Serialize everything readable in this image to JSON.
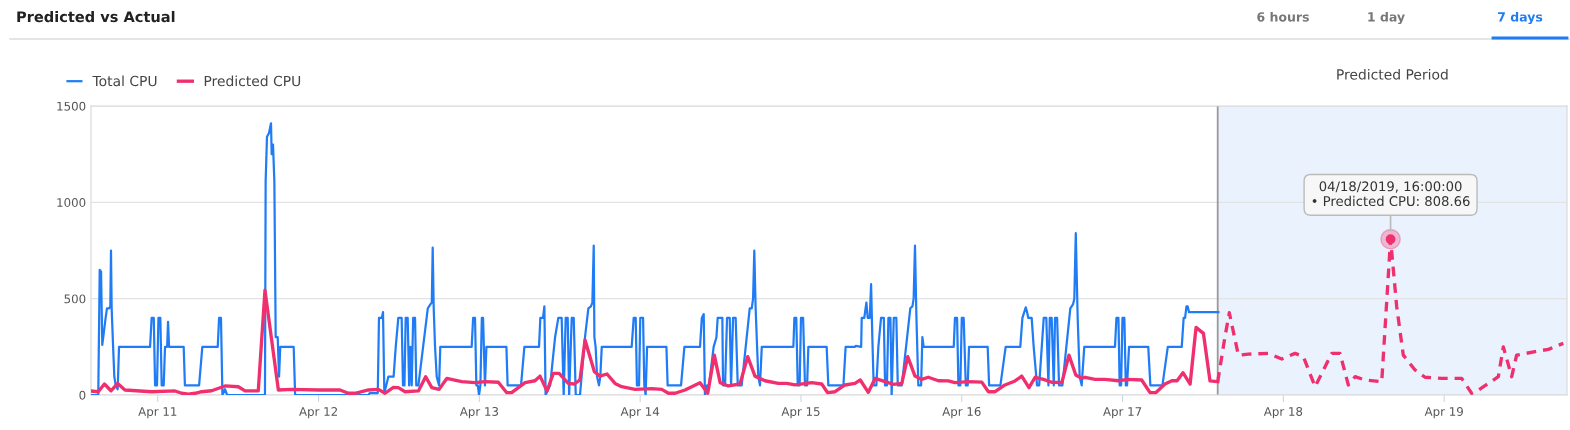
{
  "chart_data": {
    "type": "line",
    "title": "Predicted vs Actual",
    "xlim": [
      "2019-04-10T14:02",
      "2019-04-19T18:20"
    ],
    "xticks": [
      {
        "value": "2019-04-11",
        "label": "Apr 11"
      },
      {
        "value": "2019-04-12",
        "label": "Apr 12"
      },
      {
        "value": "2019-04-13",
        "label": "Apr 13"
      },
      {
        "value": "2019-04-14",
        "label": "Apr 14"
      },
      {
        "value": "2019-04-15",
        "label": "Apr 15"
      },
      {
        "value": "2019-04-16",
        "label": "Apr 16"
      },
      {
        "value": "2019-04-17",
        "label": "Apr 17"
      },
      {
        "value": "2019-04-18",
        "label": "Apr 18"
      },
      {
        "value": "2019-04-19",
        "label": "Apr 19"
      }
    ],
    "ylim": [
      0,
      1500
    ],
    "yticks": [
      0,
      500,
      1000,
      1500
    ],
    "grid": "y",
    "legend": "top left",
    "bands": [
      {
        "axis": "x",
        "from": "2019-04-17T14:12",
        "to": "2019-04-19T18:20",
        "label": "Predicted Period",
        "color": "#eaf2fd"
      }
    ],
    "ref_lines": [
      {
        "axis": "x",
        "value": "2019-04-17T14:12",
        "color": "#999999",
        "line_style": "solid"
      }
    ],
    "annotations": [
      "6 hours",
      "1 day",
      "7 days",
      {
        "text": "04/18/2019, 16:00:00\n• Predicted CPU: 808.66",
        "x": "2019-04-18T16:00",
        "y": 808.66
      }
    ],
    "series": [
      {
        "name": "Total CPU",
        "color": "#1f7cf6",
        "line_style": "solid",
        "x": [
          "2019-04-10T14:02",
          "2019-04-10T15:07",
          "2019-04-10T15:20",
          "2019-04-10T15:32",
          "2019-04-10T15:43",
          "2019-04-10T16:13",
          "2019-04-10T16:25",
          "2019-04-10T16:44",
          "2019-04-10T16:55",
          "2019-04-10T17:01",
          "2019-04-10T17:07",
          "2019-04-10T17:20",
          "2019-04-10T17:31",
          "2019-04-10T17:43",
          "2019-04-10T18:01",
          "2019-04-10T18:13",
          "2019-04-10T22:51",
          "2019-04-10T23:05",
          "2019-04-10T23:24",
          "2019-04-10T23:36",
          "2019-04-10T23:53",
          "2019-04-11T00:06",
          "2019-04-11T00:23",
          "2019-04-11T00:35",
          "2019-04-11T00:53",
          "2019-04-11T01:05",
          "2019-04-11T01:24",
          "2019-04-11T01:32",
          "2019-04-11T01:41",
          "2019-04-11T03:52",
          "2019-04-11T04:03",
          "2019-04-11T06:10",
          "2019-04-11T06:39",
          "2019-04-11T08:57",
          "2019-04-11T09:09",
          "2019-04-11T09:26",
          "2019-04-11T09:39",
          "2019-04-11T10:02",
          "2019-04-11T10:21",
          "2019-04-11T16:00",
          "2019-04-11T16:06",
          "2019-04-11T16:18",
          "2019-04-11T16:36",
          "2019-04-11T16:54",
          "2019-04-11T17:00",
          "2019-04-11T17:12",
          "2019-04-11T17:24",
          "2019-04-11T17:36",
          "2019-04-11T17:54",
          "2019-04-11T18:06",
          "2019-04-11T18:17",
          "2019-04-11T20:17",
          "2019-04-11T20:30",
          "2019-04-12T07:26",
          "2019-04-12T07:38",
          "2019-04-12T08:50",
          "2019-04-12T09:01",
          "2019-04-12T09:26",
          "2019-04-12T09:37",
          "2019-04-12T09:49",
          "2019-04-12T10:25",
          "2019-04-12T11:12",
          "2019-04-12T11:31",
          "2019-04-12T11:54",
          "2019-04-12T12:24",
          "2019-04-12T12:36",
          "2019-04-12T12:49",
          "2019-04-12T13:00",
          "2019-04-12T13:18",
          "2019-04-12T13:31",
          "2019-04-12T13:42",
          "2019-04-12T13:54",
          "2019-04-12T14:07",
          "2019-04-12T14:24",
          "2019-04-12T14:35",
          "2019-04-12T14:54",
          "2019-04-12T16:18",
          "2019-04-12T16:41",
          "2019-04-12T16:54",
          "2019-04-12T17:02",
          "2019-04-12T17:11",
          "2019-04-12T17:23",
          "2019-04-12T17:38",
          "2019-04-12T17:59",
          "2019-04-12T18:10",
          "2019-04-12T22:51",
          "2019-04-12T23:04",
          "2019-04-12T23:21",
          "2019-04-12T23:33",
          "2019-04-12T23:46",
          "2019-04-12T23:57",
          "2019-04-13T00:09",
          "2019-04-13T00:22",
          "2019-04-13T00:33",
          "2019-04-13T00:50",
          "2019-04-13T01:03",
          "2019-04-13T04:02",
          "2019-04-13T04:13",
          "2019-04-13T06:13",
          "2019-04-13T06:43",
          "2019-04-13T08:54",
          "2019-04-13T09:06",
          "2019-04-13T09:30",
          "2019-04-13T09:42",
          "2019-04-13T09:53",
          "2019-04-13T10:34",
          "2019-04-13T11:18",
          "2019-04-13T11:47",
          "2019-04-13T12:17",
          "2019-04-13T12:35",
          "2019-04-13T12:53",
          "2019-04-13T13:11",
          "2019-04-13T13:24",
          "2019-04-13T13:47",
          "2019-04-13T14:05",
          "2019-04-13T14:23",
          "2019-04-13T15:01",
          "2019-04-13T15:46",
          "2019-04-13T16:16",
          "2019-04-13T16:39",
          "2019-04-13T16:52",
          "2019-04-13T17:04",
          "2019-04-13T17:10",
          "2019-04-13T17:21",
          "2019-04-13T17:34",
          "2019-04-13T17:51",
          "2019-04-13T18:03",
          "2019-04-13T18:16",
          "2019-04-13T22:44",
          "2019-04-13T23:02",
          "2019-04-13T23:20",
          "2019-04-13T23:31",
          "2019-04-13T23:50",
          "2019-04-14T00:01",
          "2019-04-14T00:26",
          "2019-04-14T00:37",
          "2019-04-14T00:49",
          "2019-04-14T01:02",
          "2019-04-14T03:55",
          "2019-04-14T04:06",
          "2019-04-14T06:06",
          "2019-04-14T06:36",
          "2019-04-14T08:56",
          "2019-04-14T09:12",
          "2019-04-14T09:29",
          "2019-04-14T09:40",
          "2019-04-14T09:59",
          "2019-04-14T10:16",
          "2019-04-14T10:58",
          "2019-04-14T11:23",
          "2019-04-14T11:34",
          "2019-04-14T12:16",
          "2019-04-14T12:22",
          "2019-04-14T12:40",
          "2019-04-14T12:58",
          "2019-04-14T13:22",
          "2019-04-14T13:34",
          "2019-04-14T13:52",
          "2019-04-14T14:15",
          "2019-04-14T14:34",
          "2019-04-14T15:09",
          "2019-04-14T16:21",
          "2019-04-14T16:39",
          "2019-04-14T16:51",
          "2019-04-14T17:02",
          "2019-04-14T17:14",
          "2019-04-14T17:27",
          "2019-04-14T17:38",
          "2019-04-14T17:53",
          "2019-04-14T18:09",
          "2019-04-14T22:52",
          "2019-04-14T23:01",
          "2019-04-14T23:18",
          "2019-04-14T23:31",
          "2019-04-14T23:48",
          "2019-04-15T00:00",
          "2019-04-15T00:19",
          "2019-04-15T00:36",
          "2019-04-15T00:55",
          "2019-04-15T01:06",
          "2019-04-15T03:50",
          "2019-04-15T04:05",
          "2019-04-15T05:05",
          "2019-04-15T06:20",
          "2019-04-15T06:40",
          "2019-04-15T08:04",
          "2019-04-15T08:10",
          "2019-04-15T08:59",
          "2019-04-15T09:04",
          "2019-04-15T09:27",
          "2019-04-15T09:46",
          "2019-04-15T09:58",
          "2019-04-15T10:16",
          "2019-04-15T10:28",
          "2019-04-15T10:39",
          "2019-04-15T10:51",
          "2019-04-15T11:15",
          "2019-04-15T11:33",
          "2019-04-15T11:57",
          "2019-04-15T12:22",
          "2019-04-15T12:33",
          "2019-04-15T12:50",
          "2019-04-15T13:03",
          "2019-04-15T13:21",
          "2019-04-15T13:32",
          "2019-04-15T13:51",
          "2019-04-15T14:14",
          "2019-04-15T14:27",
          "2019-04-15T15:03",
          "2019-04-15T16:19",
          "2019-04-15T16:38",
          "2019-04-15T16:49",
          "2019-04-15T17:01",
          "2019-04-15T17:14",
          "2019-04-15T17:31",
          "2019-04-15T17:56",
          "2019-04-15T18:07",
          "2019-04-15T18:19",
          "2019-04-15T22:48",
          "2019-04-15T22:59",
          "2019-04-15T23:18",
          "2019-04-15T23:30",
          "2019-04-15T23:47",
          "2019-04-16T00:00",
          "2019-04-16T00:17",
          "2019-04-16T00:36",
          "2019-04-16T00:53",
          "2019-04-16T01:05",
          "2019-04-16T03:52",
          "2019-04-16T04:05",
          "2019-04-16T05:46",
          "2019-04-16T06:33",
          "2019-04-16T08:44",
          "2019-04-16T09:03",
          "2019-04-16T09:33",
          "2019-04-16T09:45",
          "2019-04-16T09:56",
          "2019-04-16T10:26",
          "2019-04-16T10:44",
          "2019-04-16T11:14",
          "2019-04-16T11:33",
          "2019-04-16T12:14",
          "2019-04-16T12:37",
          "2019-04-16T12:56",
          "2019-04-16T13:08",
          "2019-04-16T13:25",
          "2019-04-16T13:44",
          "2019-04-16T13:55",
          "2019-04-16T14:14",
          "2019-04-16T14:31",
          "2019-04-16T15:01",
          "2019-04-16T16:12",
          "2019-04-16T16:36",
          "2019-04-16T16:48",
          "2019-04-16T17:01",
          "2019-04-16T17:18",
          "2019-04-16T17:36",
          "2019-04-16T17:54",
          "2019-04-16T18:17",
          "2019-04-16T18:24",
          "2019-04-16T22:52",
          "2019-04-16T23:05",
          "2019-04-16T23:23",
          "2019-04-16T23:34",
          "2019-04-16T23:47",
          "2019-04-16T23:59",
          "2019-04-17T00:16",
          "2019-04-17T00:29",
          "2019-04-17T00:40",
          "2019-04-17T00:58",
          "2019-04-17T03:50",
          "2019-04-17T04:09",
          "2019-04-17T05:57",
          "2019-04-17T06:45",
          "2019-04-17T08:50",
          "2019-04-17T09:07",
          "2019-04-17T09:20",
          "2019-04-17T09:32",
          "2019-04-17T09:43",
          "2019-04-17T09:55",
          "2019-04-17T14:18"
        ],
        "values": [
          0,
          0,
          650,
          640,
          260,
          400,
          450,
          450,
          460,
          750,
          450,
          250,
          95,
          50,
          30,
          250,
          250,
          400,
          400,
          50,
          50,
          400,
          400,
          50,
          50,
          250,
          250,
          380,
          250,
          250,
          50,
          50,
          250,
          250,
          400,
          400,
          0,
          30,
          0,
          0,
          1110,
          1340,
          1360,
          1410,
          1250,
          1300,
          1110,
          300,
          300,
          95,
          250,
          250,
          0,
          0,
          10,
          10,
          400,
          400,
          430,
          10,
          95,
          95,
          250,
          400,
          400,
          50,
          50,
          400,
          400,
          50,
          250,
          50,
          400,
          400,
          50,
          50,
          450,
          470,
          480,
          765,
          450,
          250,
          95,
          50,
          250,
          250,
          400,
          400,
          50,
          50,
          0,
          50,
          400,
          400,
          50,
          250,
          250,
          50,
          50,
          250,
          250,
          400,
          400,
          460,
          0,
          50,
          300,
          400,
          400,
          0,
          400,
          400,
          0,
          400,
          400,
          0,
          0,
          300,
          450,
          460,
          480,
          775,
          300,
          250,
          95,
          50,
          95,
          250,
          250,
          400,
          400,
          50,
          50,
          400,
          400,
          50,
          0,
          250,
          250,
          50,
          50,
          250,
          250,
          400,
          420,
          0,
          50,
          50,
          250,
          300,
          400,
          400,
          50,
          50,
          400,
          400,
          50,
          400,
          400,
          50,
          50,
          450,
          450,
          500,
          750,
          450,
          250,
          95,
          50,
          250,
          250,
          400,
          400,
          50,
          50,
          400,
          400,
          50,
          50,
          250,
          250,
          50,
          50,
          50,
          250,
          250,
          255,
          250,
          400,
          400,
          480,
          400,
          400,
          575,
          300,
          50,
          50,
          250,
          400,
          400,
          50,
          50,
          400,
          400,
          0,
          400,
          400,
          50,
          50,
          450,
          460,
          500,
          775,
          400,
          50,
          50,
          300,
          250,
          250,
          400,
          400,
          50,
          50,
          400,
          400,
          50,
          50,
          250,
          250,
          50,
          50,
          250,
          250,
          400,
          455,
          430,
          400,
          400,
          250,
          50,
          50,
          400,
          400,
          50,
          400,
          400,
          50,
          400,
          400,
          50,
          50,
          450,
          470,
          500,
          840,
          400,
          95,
          50,
          250,
          250,
          250,
          400,
          400,
          50,
          50,
          400,
          400,
          50,
          50,
          250,
          250,
          50,
          50,
          250,
          250,
          400,
          400,
          460,
          460,
          430,
          430
        ]
      },
      {
        "name": "Predicted CPU",
        "color": "#f0306e",
        "line_style": "solid",
        "x": [
          "2019-04-10T14:02",
          "2019-04-10T15:07",
          "2019-04-10T16:02",
          "2019-04-10T17:01",
          "2019-04-10T18:01",
          "2019-04-10T19:06",
          "2019-04-10T23:05",
          "2019-04-11T02:34",
          "2019-04-11T03:35",
          "2019-04-11T04:34",
          "2019-04-11T05:34",
          "2019-04-11T06:33",
          "2019-04-11T08:02",
          "2019-04-11T10:02",
          "2019-04-11T12:01",
          "2019-04-11T13:02",
          "2019-04-11T15:00",
          "2019-04-11T16:00",
          "2019-04-11T18:00",
          "2019-04-11T19:59",
          "2019-04-11T23:59",
          "2019-04-12T03:12",
          "2019-04-12T04:26",
          "2019-04-12T05:27",
          "2019-04-12T07:26",
          "2019-04-12T08:56",
          "2019-04-12T09:55",
          "2019-04-12T11:10",
          "2019-04-12T11:54",
          "2019-04-12T12:55",
          "2019-04-12T14:54",
          "2019-04-12T15:59",
          "2019-04-12T16:54",
          "2019-04-12T17:59",
          "2019-04-12T19:08",
          "2019-04-12T21:22",
          "2019-04-12T23:21",
          "2019-04-13T00:50",
          "2019-04-13T02:50",
          "2019-04-13T04:05",
          "2019-04-13T04:49",
          "2019-04-13T06:49",
          "2019-04-13T08:18",
          "2019-04-13T09:03",
          "2019-04-13T10:06",
          "2019-04-13T11:02",
          "2019-04-13T11:54",
          "2019-04-13T13:16",
          "2019-04-13T14:11",
          "2019-04-13T15:01",
          "2019-04-13T15:46",
          "2019-04-13T17:10",
          "2019-04-13T18:00",
          "2019-04-13T19:03",
          "2019-04-13T20:15",
          "2019-04-13T21:14",
          "2019-04-13T23:14",
          "2019-04-14T01:44",
          "2019-04-14T03:13",
          "2019-04-14T04:13",
          "2019-04-14T05:12",
          "2019-04-14T06:42",
          "2019-04-14T08:56",
          "2019-04-14T10:05",
          "2019-04-14T11:04",
          "2019-04-14T11:56",
          "2019-04-14T13:09",
          "2019-04-14T14:54",
          "2019-04-14T16:03",
          "2019-04-14T17:08",
          "2019-04-14T18:37",
          "2019-04-14T20:37",
          "2019-04-14T21:52",
          "2019-04-14T23:07",
          "2019-04-15T01:36",
          "2019-04-15T03:06",
          "2019-04-15T03:59",
          "2019-04-15T05:05",
          "2019-04-15T06:35",
          "2019-04-15T08:04",
          "2019-04-15T08:51",
          "2019-04-15T10:03",
          "2019-04-15T11:04",
          "2019-04-15T12:33",
          "2019-04-15T13:48",
          "2019-04-15T15:03",
          "2019-04-15T15:56",
          "2019-04-15T17:01",
          "2019-04-15T18:01",
          "2019-04-15T19:00",
          "2019-04-15T20:31",
          "2019-04-15T22:00",
          "2019-04-15T22:59",
          "2019-04-16T00:59",
          "2019-04-16T02:59",
          "2019-04-16T03:59",
          "2019-04-16T04:58",
          "2019-04-16T06:27",
          "2019-04-16T07:57",
          "2019-04-16T08:57",
          "2019-04-16T10:02",
          "2019-04-16T10:57",
          "2019-04-16T12:11",
          "2019-04-16T13:25",
          "2019-04-16T14:56",
          "2019-04-16T16:00",
          "2019-04-16T17:01",
          "2019-04-16T17:54",
          "2019-04-16T18:24",
          "2019-04-16T19:54",
          "2019-04-16T21:23",
          "2019-04-16T23:23",
          "2019-04-17T00:52",
          "2019-04-17T02:51",
          "2019-04-17T04:06",
          "2019-04-17T04:57",
          "2019-04-17T06:20",
          "2019-04-17T07:21",
          "2019-04-17T08:08",
          "2019-04-17T09:01",
          "2019-04-17T10:05",
          "2019-04-17T10:58",
          "2019-04-17T12:04",
          "2019-04-17T13:03",
          "2019-04-17T14:12"
        ],
        "values": [
          21,
          17,
          57,
          22,
          60,
          26,
          17,
          21,
          9,
          5,
          9,
          17,
          22,
          47,
          43,
          21,
          22,
          544,
          26,
          29,
          26,
          26,
          9,
          9,
          26,
          29,
          9,
          40,
          38,
          17,
          21,
          95,
          38,
          29,
          86,
          69,
          64,
          69,
          66,
          12,
          12,
          64,
          74,
          98,
          21,
          112,
          112,
          60,
          57,
          78,
          285,
          121,
          98,
          109,
          60,
          43,
          29,
          33,
          29,
          9,
          9,
          26,
          64,
          9,
          207,
          64,
          47,
          57,
          199,
          98,
          74,
          60,
          60,
          53,
          64,
          57,
          12,
          17,
          52,
          60,
          78,
          14,
          86,
          69,
          55,
          60,
          199,
          98,
          81,
          92,
          74,
          73,
          64,
          69,
          67,
          17,
          17,
          52,
          73,
          98,
          38,
          92,
          81,
          66,
          64,
          207,
          104,
          86,
          92,
          81,
          81,
          74,
          81,
          78,
          12,
          12,
          57,
          74,
          74,
          116,
          57,
          351,
          320,
          73,
          69
        ]
      },
      {
        "color": "#f0306e",
        "line_style": "dashed",
        "x": [
          "2019-04-17T14:12",
          "2019-04-17T15:17",
          "2019-04-17T15:56",
          "2019-04-17T17:17",
          "2019-04-17T18:46",
          "2019-04-17T21:46",
          "2019-04-17T23:46",
          "2019-04-18T01:45",
          "2019-04-18T02:59",
          "2019-04-18T04:44",
          "2019-04-18T07:13",
          "2019-04-18T08:27",
          "2019-04-18T09:42",
          "2019-04-18T10:42",
          "2019-04-18T12:11",
          "2019-04-18T14:41",
          "2019-04-18T16:00",
          "2019-04-18T16:55",
          "2019-04-18T17:54",
          "2019-04-18T19:39",
          "2019-04-18T21:09",
          "2019-04-18T23:38",
          "2019-04-19T02:37",
          "2019-04-19T04:06",
          "2019-04-19T05:07",
          "2019-04-19T08:05",
          "2019-04-19T08:50",
          "2019-04-19T10:05",
          "2019-04-19T10:49",
          "2019-04-19T13:34",
          "2019-04-19T15:33",
          "2019-04-19T17:47"
        ],
        "values": [
          69,
          302,
          427,
          207,
          212,
          216,
          187,
          216,
          199,
          43,
          216,
          216,
          52,
          95,
          78,
          69,
          808.66,
          458,
          207,
          130,
          92,
          86,
          86,
          9,
          26,
          95,
          250,
          95,
          207,
          225,
          237,
          268
        ]
      }
    ]
  }
}
